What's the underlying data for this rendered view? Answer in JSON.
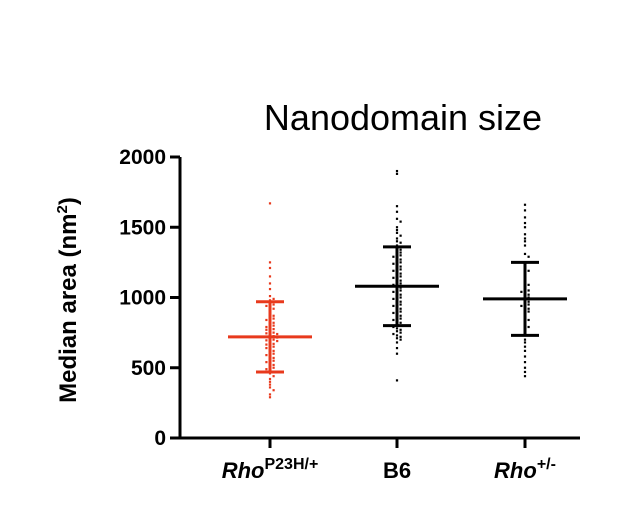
{
  "chart_data": {
    "type": "scatter",
    "title": "Nanodomain size",
    "ylabel_main": "Median area (nm",
    "ylabel_sup": "2",
    "ylabel_end": ")",
    "ylim": [
      0,
      2000
    ],
    "yticks": [
      "0",
      "500",
      "1000",
      "1500",
      "2000"
    ],
    "categories": [
      {
        "main": "Rho",
        "sup": "P23H/+",
        "italic": true
      },
      {
        "main": "B6",
        "sup": "",
        "italic": false
      },
      {
        "main": "Rho",
        "sup": "+/-",
        "italic": true
      }
    ],
    "colors": [
      "#e8391c",
      "#000000",
      "#000000"
    ],
    "series": [
      {
        "mean": 720,
        "sd_low": 470,
        "sd_high": 970,
        "values": [
          1670,
          1250,
          1210,
          1150,
          1100,
          1060,
          1010,
          990,
          980,
          960,
          950,
          940,
          930,
          920,
          900,
          880,
          870,
          860,
          850,
          840,
          830,
          820,
          810,
          800,
          790,
          780,
          775,
          770,
          760,
          750,
          745,
          740,
          730,
          725,
          720,
          715,
          710,
          700,
          695,
          690,
          680,
          670,
          665,
          660,
          650,
          640,
          630,
          620,
          610,
          600,
          590,
          580,
          570,
          560,
          550,
          540,
          530,
          520,
          510,
          500,
          490,
          480,
          470,
          460,
          440,
          420,
          400,
          380,
          360,
          340,
          310,
          290
        ]
      },
      {
        "mean": 1080,
        "sd_low": 800,
        "sd_high": 1360,
        "values": [
          1900,
          1880,
          1650,
          1610,
          1560,
          1540,
          1500,
          1480,
          1460,
          1440,
          1420,
          1400,
          1390,
          1370,
          1350,
          1340,
          1330,
          1320,
          1310,
          1300,
          1290,
          1280,
          1270,
          1260,
          1250,
          1240,
          1230,
          1220,
          1210,
          1200,
          1190,
          1180,
          1170,
          1160,
          1150,
          1140,
          1130,
          1120,
          1110,
          1100,
          1090,
          1080,
          1070,
          1060,
          1050,
          1040,
          1030,
          1020,
          1010,
          1000,
          990,
          980,
          970,
          960,
          950,
          940,
          930,
          920,
          910,
          900,
          890,
          880,
          870,
          860,
          850,
          840,
          830,
          820,
          810,
          800,
          790,
          780,
          770,
          760,
          750,
          740,
          730,
          720,
          710,
          700,
          680,
          640,
          600,
          410
        ]
      },
      {
        "mean": 990,
        "sd_low": 730,
        "sd_high": 1250,
        "values": [
          1660,
          1620,
          1570,
          1530,
          1500,
          1450,
          1420,
          1400,
          1370,
          1310,
          1290,
          1250,
          1230,
          1210,
          1190,
          1170,
          1150,
          1130,
          1110,
          1090,
          1070,
          1060,
          1050,
          1040,
          1030,
          1020,
          1010,
          1000,
          990,
          980,
          970,
          960,
          950,
          940,
          930,
          920,
          910,
          900,
          880,
          860,
          840,
          820,
          800,
          790,
          770,
          750,
          730,
          700,
          680,
          650,
          620,
          580,
          540,
          500,
          470,
          440
        ]
      }
    ]
  }
}
